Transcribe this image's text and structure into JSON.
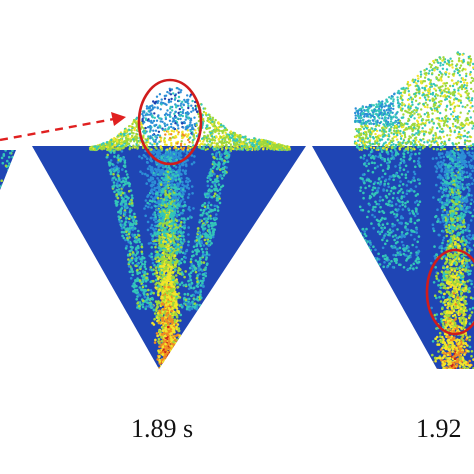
{
  "panels": [
    {
      "time_label": "1.89 s"
    },
    {
      "time_label": "1.92"
    }
  ],
  "colors": {
    "background": "#ffffff",
    "colormap": [
      "#1d3fae",
      "#2c8fd6",
      "#33c6b9",
      "#9fd83a",
      "#f2e52a",
      "#f08a22",
      "#c8221c"
    ],
    "highlight_ellipse": "#d01c1c",
    "arrow": "#e02020"
  },
  "annotations": [
    "highlight-ellipse",
    "dashed-arrow"
  ]
}
